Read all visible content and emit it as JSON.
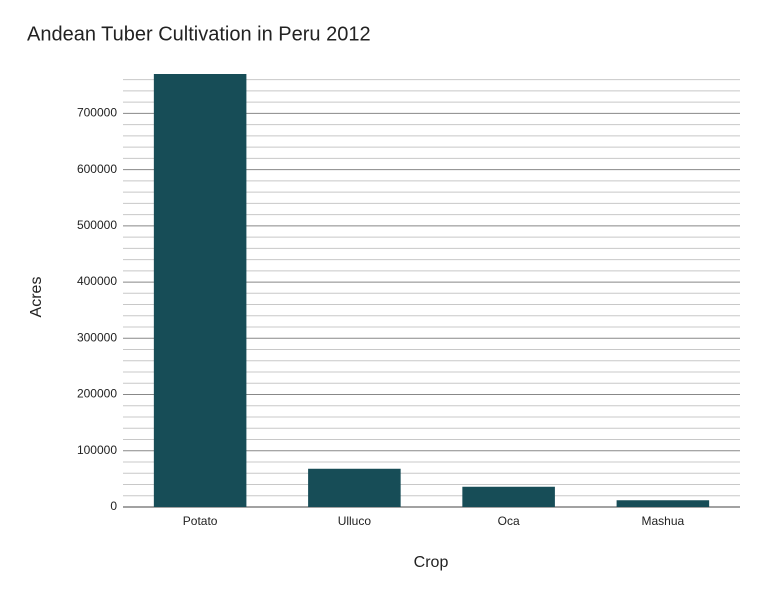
{
  "chart_data": {
    "type": "bar",
    "title": "Andean Tuber Cultivation in Peru 2012",
    "x_label": "Crop",
    "y_label": "Acres",
    "categories": [
      "Potato",
      "Ulluco",
      "Oca",
      "Mashua"
    ],
    "values": [
      770000,
      68000,
      36000,
      12000
    ],
    "color": "#174d57",
    "ylim": [
      0,
      770000
    ],
    "yticks": [
      0,
      100000,
      200000,
      300000,
      400000,
      500000,
      600000,
      700000
    ],
    "yminorticks": [
      20000,
      40000,
      60000,
      80000,
      120000,
      140000,
      160000,
      180000,
      220000,
      240000,
      260000,
      280000,
      320000,
      340000,
      360000,
      380000,
      420000,
      440000,
      460000,
      480000,
      520000,
      540000,
      560000,
      580000,
      620000,
      640000,
      660000,
      680000,
      720000,
      740000,
      760000
    ],
    "grid": true
  }
}
